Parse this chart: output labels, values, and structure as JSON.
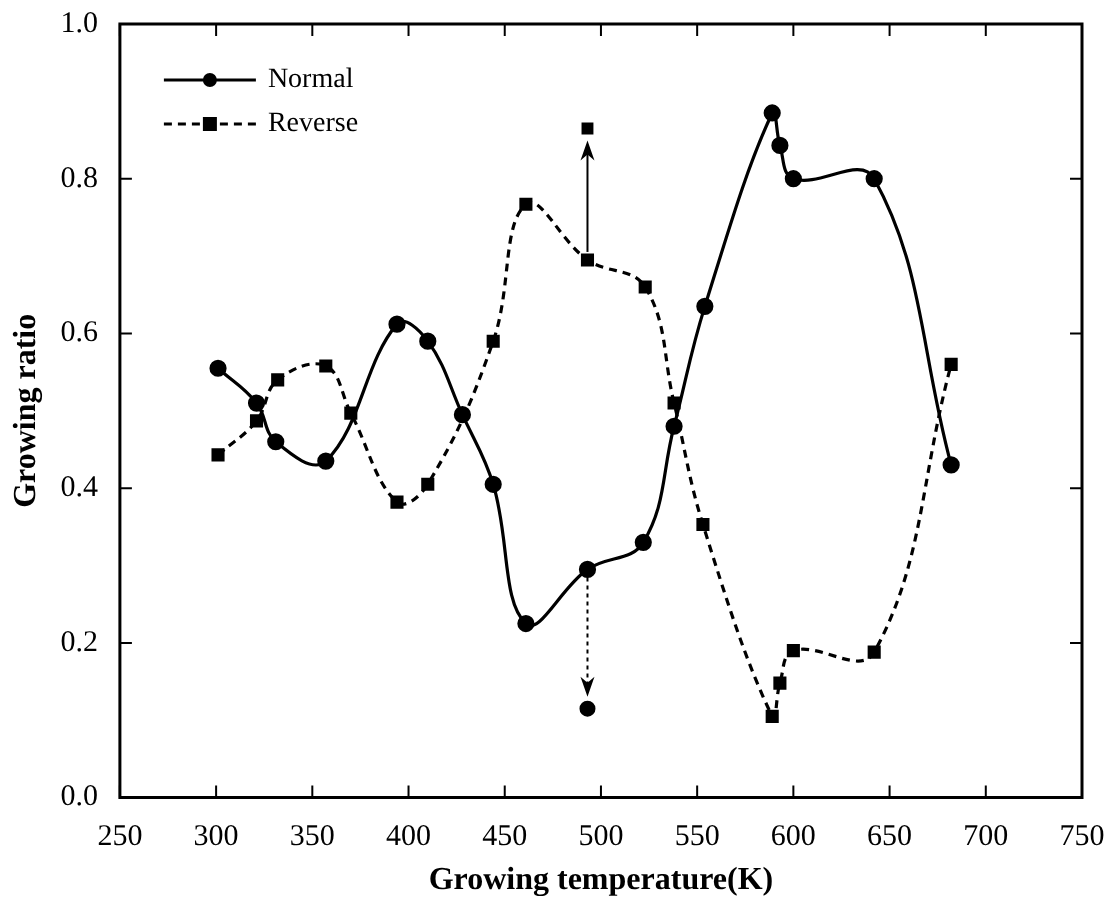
{
  "chart_data": {
    "type": "line",
    "xlabel": "Growing temperature(K)",
    "ylabel": "Growing ratio",
    "xlim": [
      250,
      750
    ],
    "xticks": [
      250,
      300,
      350,
      400,
      450,
      500,
      550,
      600,
      650,
      700,
      750
    ],
    "ylim": [
      0,
      1
    ],
    "yticks": [
      {
        "value": 0,
        "label": "0.0"
      },
      0.2,
      0.4,
      0.6,
      0.8,
      {
        "value": 1,
        "label": "1.0"
      }
    ],
    "legend": "top left",
    "series": [
      {
        "name": "Normal",
        "color": "#000000",
        "marker": "circle",
        "line_style": "solid",
        "x": [
          301,
          321,
          331,
          357,
          394,
          410,
          428,
          444,
          461,
          493,
          522,
          538,
          554,
          589,
          593,
          600,
          642,
          682
        ],
        "values": [
          0.555,
          0.51,
          0.46,
          0.435,
          0.612,
          0.59,
          0.495,
          0.405,
          0.225,
          0.295,
          0.33,
          0.48,
          0.635,
          0.885,
          0.843,
          0.8,
          0.8,
          0.43
        ]
      },
      {
        "name": "Reverse",
        "color": "#000000",
        "marker": "square",
        "line_style": "dashed",
        "x": [
          301,
          321,
          332,
          357,
          370,
          394,
          410,
          444,
          461,
          493,
          523,
          538,
          553,
          589,
          593,
          600,
          642,
          682
        ],
        "values": [
          0.443,
          0.487,
          0.54,
          0.558,
          0.497,
          0.382,
          0.405,
          0.59,
          0.767,
          0.695,
          0.66,
          0.51,
          0.353,
          0.105,
          0.148,
          0.19,
          0.188,
          0.56
        ]
      },
      {
        "type": "scatter",
        "color": "#000000",
        "marker": "circle",
        "x": [
          493
        ],
        "values": [
          0.115
        ]
      },
      {
        "type": "scatter",
        "color": "#000000",
        "marker": "square",
        "x": [
          493
        ],
        "values": [
          0.865
        ]
      }
    ]
  }
}
